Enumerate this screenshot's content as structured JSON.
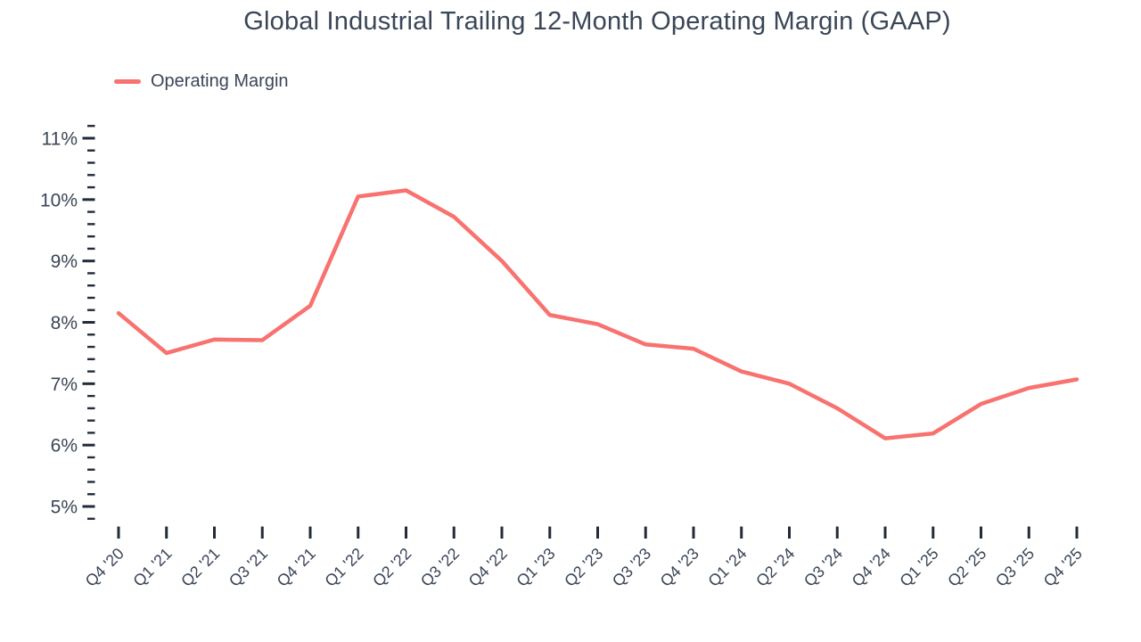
{
  "chart": {
    "title": "Global Industrial Trailing 12-Month Operating Margin (GAAP)",
    "legend_label": "Operating Margin"
  },
  "chart_data": {
    "type": "line",
    "title": "Global Industrial Trailing 12-Month Operating Margin (GAAP)",
    "categories": [
      "Q4 '20",
      "Q1 '21",
      "Q2 '21",
      "Q3 '21",
      "Q4 '21",
      "Q1 '22",
      "Q2 '22",
      "Q3 '22",
      "Q4 '22",
      "Q1 '23",
      "Q2 '23",
      "Q3 '23",
      "Q4 '23",
      "Q1 '24",
      "Q2 '24",
      "Q3 '24",
      "Q4 '24",
      "Q1 '25",
      "Q2 '25",
      "Q3 '25",
      "Q4 '25"
    ],
    "series": [
      {
        "name": "Operating Margin",
        "color": "#F8726F",
        "values": [
          8.15,
          7.5,
          7.72,
          7.71,
          8.27,
          10.05,
          10.15,
          9.72,
          9.0,
          8.12,
          7.97,
          7.64,
          7.57,
          7.2,
          7.0,
          6.6,
          6.11,
          6.19,
          6.67,
          6.93,
          7.07
        ]
      }
    ],
    "xlabel": "",
    "ylabel": "",
    "y_unit": "%",
    "ylim": [
      4.8,
      11.2
    ],
    "y_major_ticks": [
      5,
      6,
      7,
      8,
      9,
      10,
      11
    ],
    "y_minor_step": 0.2,
    "grid": false,
    "markers": false,
    "legend_position": "top-left"
  },
  "colors": {
    "series": "#F8726F",
    "text": "#3A4657",
    "tick": "#222B3A",
    "background": "#FFFFFF"
  }
}
